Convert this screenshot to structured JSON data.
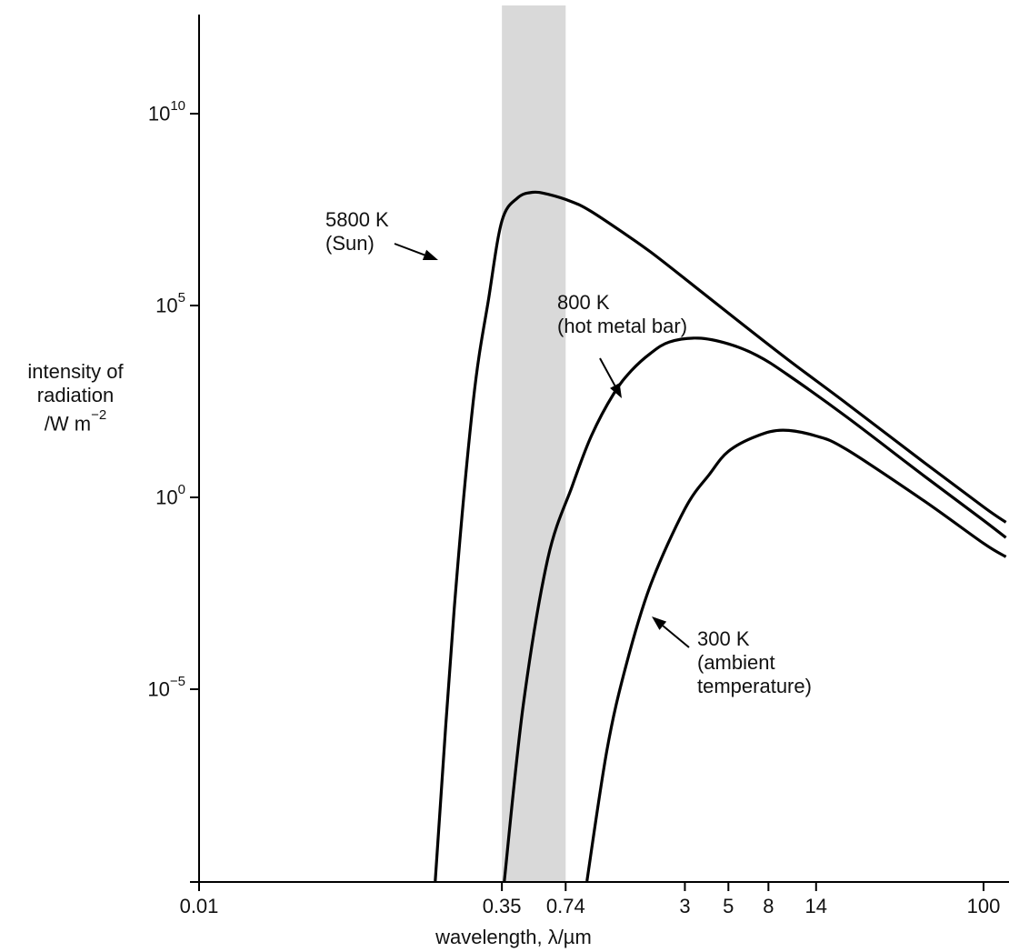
{
  "chart_data": {
    "type": "line",
    "title": "",
    "xlabel": "wavelength, λ/µm",
    "ylabel_lines": [
      "intensity of",
      "radiation",
      "/W m"
    ],
    "ylabel_unit_exp": "−2",
    "x_scale": "log",
    "y_scale": "log",
    "xlim": [
      0.01,
      130
    ],
    "ylim": [
      1e-10,
      1000000000000.0
    ],
    "x_ticks": [
      {
        "value": 0.01,
        "label": "0.01"
      },
      {
        "value": 0.35,
        "label": "0.35"
      },
      {
        "value": 0.74,
        "label": "0.74"
      },
      {
        "value": 3,
        "label": "3"
      },
      {
        "value": 5,
        "label": "5"
      },
      {
        "value": 8,
        "label": "8"
      },
      {
        "value": 14,
        "label": "14"
      },
      {
        "value": 100,
        "label": "100"
      }
    ],
    "y_ticks": [
      {
        "value": 10000000000.0,
        "base": "10",
        "exp": "10"
      },
      {
        "value": 100000.0,
        "base": "10",
        "exp": "5"
      },
      {
        "value": 1,
        "base": "10",
        "exp": "0"
      },
      {
        "value": 1e-05,
        "base": "10",
        "exp": "−5"
      }
    ],
    "shaded_band": {
      "x_from": 0.35,
      "x_to": 0.74,
      "color": "#d9d9d9"
    },
    "series": [
      {
        "temperature_K": 5800,
        "label_line1": "5800 K",
        "label_line2": "(Sun)",
        "points": [
          [
            0.16,
            -10
          ],
          [
            0.2,
            -2.9
          ],
          [
            0.25,
            2.5
          ],
          [
            0.3,
            5.2
          ],
          [
            0.35,
            7.2
          ],
          [
            0.42,
            7.8
          ],
          [
            0.5,
            7.95
          ],
          [
            0.6,
            7.9
          ],
          [
            0.8,
            7.7
          ],
          [
            1,
            7.45
          ],
          [
            1.5,
            6.85
          ],
          [
            2,
            6.4
          ],
          [
            3,
            5.7
          ],
          [
            5,
            4.8
          ],
          [
            10,
            3.6
          ],
          [
            20,
            2.45
          ],
          [
            50,
            0.9
          ],
          [
            100,
            -0.25
          ],
          [
            130,
            -0.65
          ]
        ]
      },
      {
        "temperature_K": 800,
        "label_line1": "800 K",
        "label_line2": "(hot metal bar)",
        "points": [
          [
            0.36,
            -10
          ],
          [
            0.45,
            -5.4
          ],
          [
            0.6,
            -1.6
          ],
          [
            0.8,
            0.3
          ],
          [
            1,
            1.6
          ],
          [
            1.3,
            2.7
          ],
          [
            1.6,
            3.3
          ],
          [
            2,
            3.75
          ],
          [
            2.5,
            4.05
          ],
          [
            3.5,
            4.15
          ],
          [
            5,
            4.0
          ],
          [
            7,
            3.7
          ],
          [
            10,
            3.2
          ],
          [
            20,
            2.1
          ],
          [
            50,
            0.55
          ],
          [
            100,
            -0.6
          ],
          [
            130,
            -1.05
          ]
        ]
      },
      {
        "temperature_K": 300,
        "label_line1": "300 K",
        "label_line2": "(ambient",
        "label_line3": "temperature)",
        "points": [
          [
            0.95,
            -10
          ],
          [
            1.2,
            -6.6
          ],
          [
            1.5,
            -4.4
          ],
          [
            2,
            -2.3
          ],
          [
            3,
            -0.3
          ],
          [
            4,
            0.6
          ],
          [
            5,
            1.2
          ],
          [
            7,
            1.6
          ],
          [
            9.5,
            1.75
          ],
          [
            14,
            1.6
          ],
          [
            20,
            1.25
          ],
          [
            50,
            -0.1
          ],
          [
            100,
            -1.2
          ],
          [
            130,
            -1.55
          ]
        ]
      }
    ],
    "colors": {
      "curve": "#000000",
      "axis": "#000000",
      "band": "#d9d9d9"
    }
  }
}
